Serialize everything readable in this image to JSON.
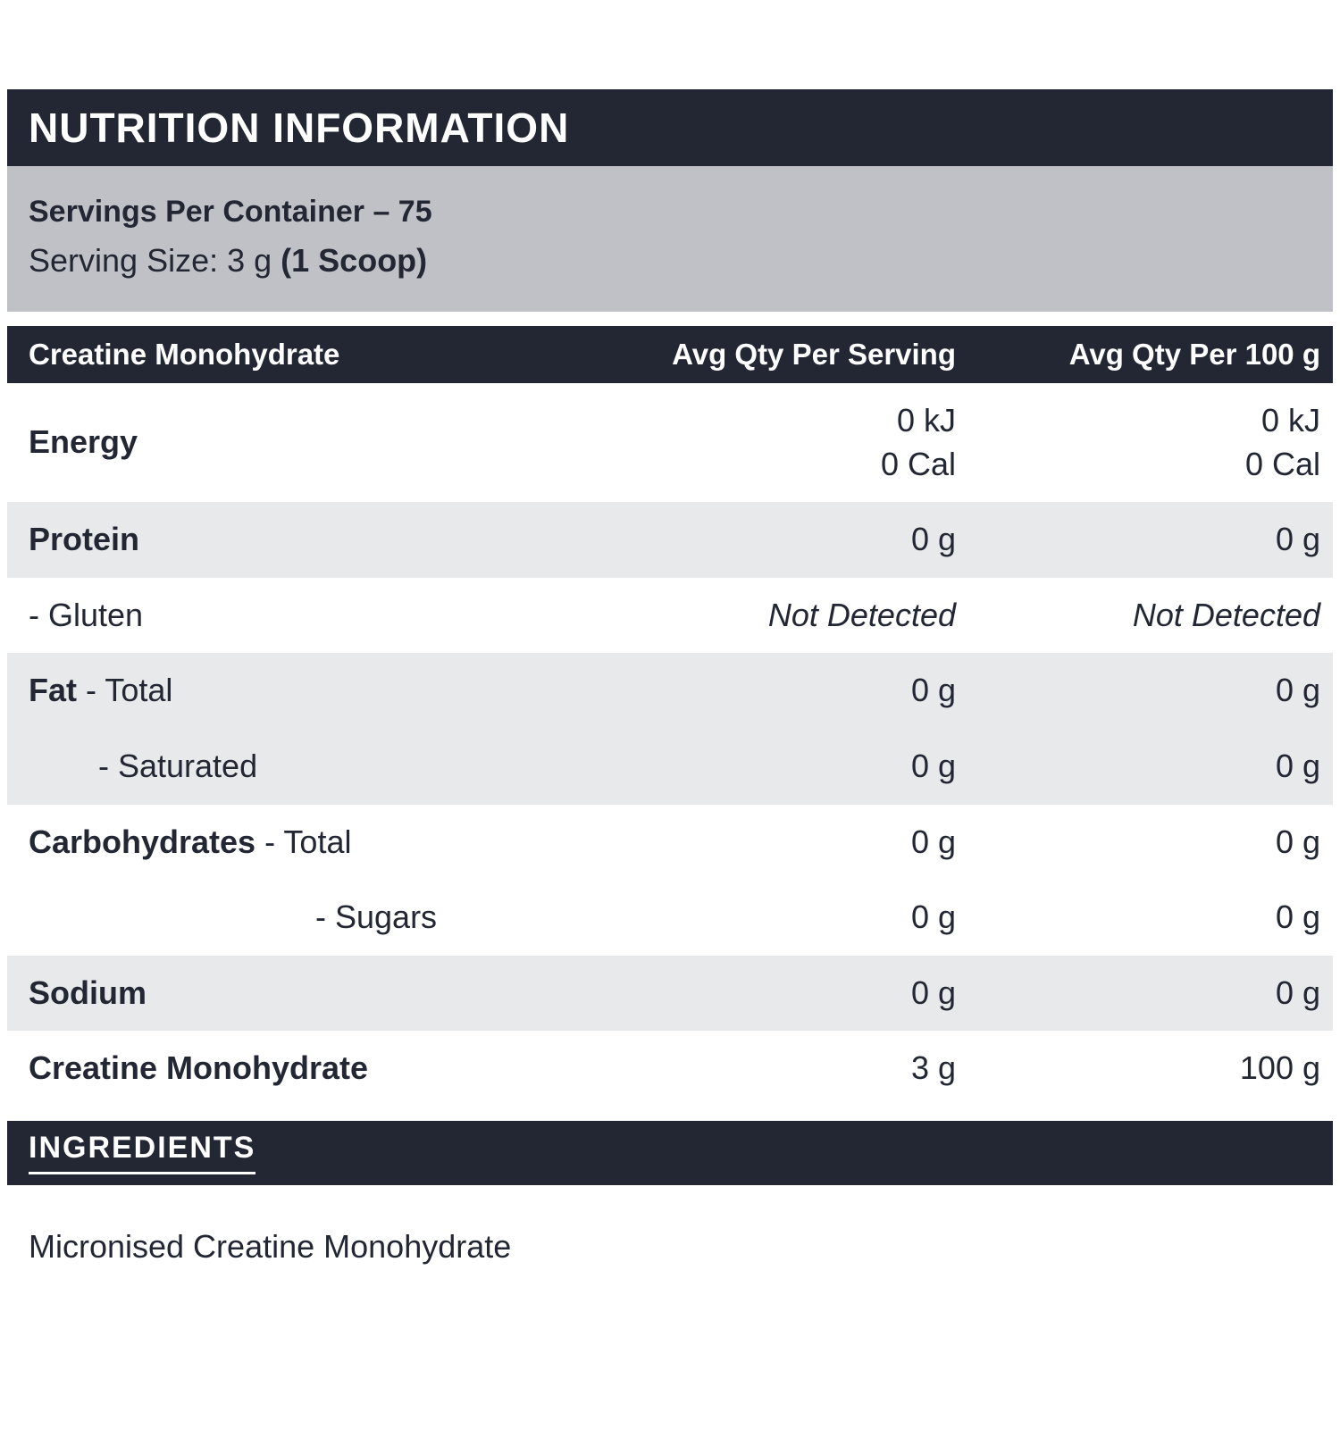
{
  "colors": {
    "dark": "#222733",
    "grayBand": "#bfc1c6",
    "rowAlt": "#e8e9eb",
    "text": "#222733"
  },
  "header": {
    "title": "NUTRITION INFORMATION"
  },
  "serving": {
    "line1": "Servings Per Container – 75",
    "line2_regular": "Serving Size: 3 g ",
    "line2_bold": "(1 Scoop)"
  },
  "table": {
    "columns": [
      "Creatine Monohydrate",
      "Avg Qty Per Serving",
      "Avg Qty Per 100 g"
    ],
    "rows": [
      {
        "bold": "Energy",
        "rest": "",
        "serving": "0 kJ",
        "serving2": "0 Cal",
        "per100": "0 kJ",
        "per100_2": "0 Cal"
      },
      {
        "bold": "Protein",
        "rest": "",
        "serving": "0 g",
        "per100": "0 g"
      },
      {
        "bold": "",
        "rest": "- Gluten",
        "serving": "Not Detected",
        "per100": "Not Detected"
      },
      {
        "bold": "Fat",
        "rest": " - Total",
        "serving": "0 g",
        "per100": "0 g"
      },
      {
        "bold": "",
        "rest": "- Saturated",
        "serving": "0 g",
        "per100": "0 g"
      },
      {
        "bold": "Carbohydrates",
        "rest": " - Total",
        "serving": "0 g",
        "per100": "0 g"
      },
      {
        "bold": "",
        "rest": "- Sugars",
        "serving": "0 g",
        "per100": "0 g"
      },
      {
        "bold": "Sodium",
        "rest": "",
        "serving": "0 g",
        "per100": "0 g"
      },
      {
        "bold": "Creatine Monohydrate",
        "rest": "",
        "serving": "3 g",
        "per100": "100 g"
      }
    ]
  },
  "ingredients": {
    "title": "INGREDIENTS",
    "text": "Micronised Creatine Monohydrate"
  }
}
